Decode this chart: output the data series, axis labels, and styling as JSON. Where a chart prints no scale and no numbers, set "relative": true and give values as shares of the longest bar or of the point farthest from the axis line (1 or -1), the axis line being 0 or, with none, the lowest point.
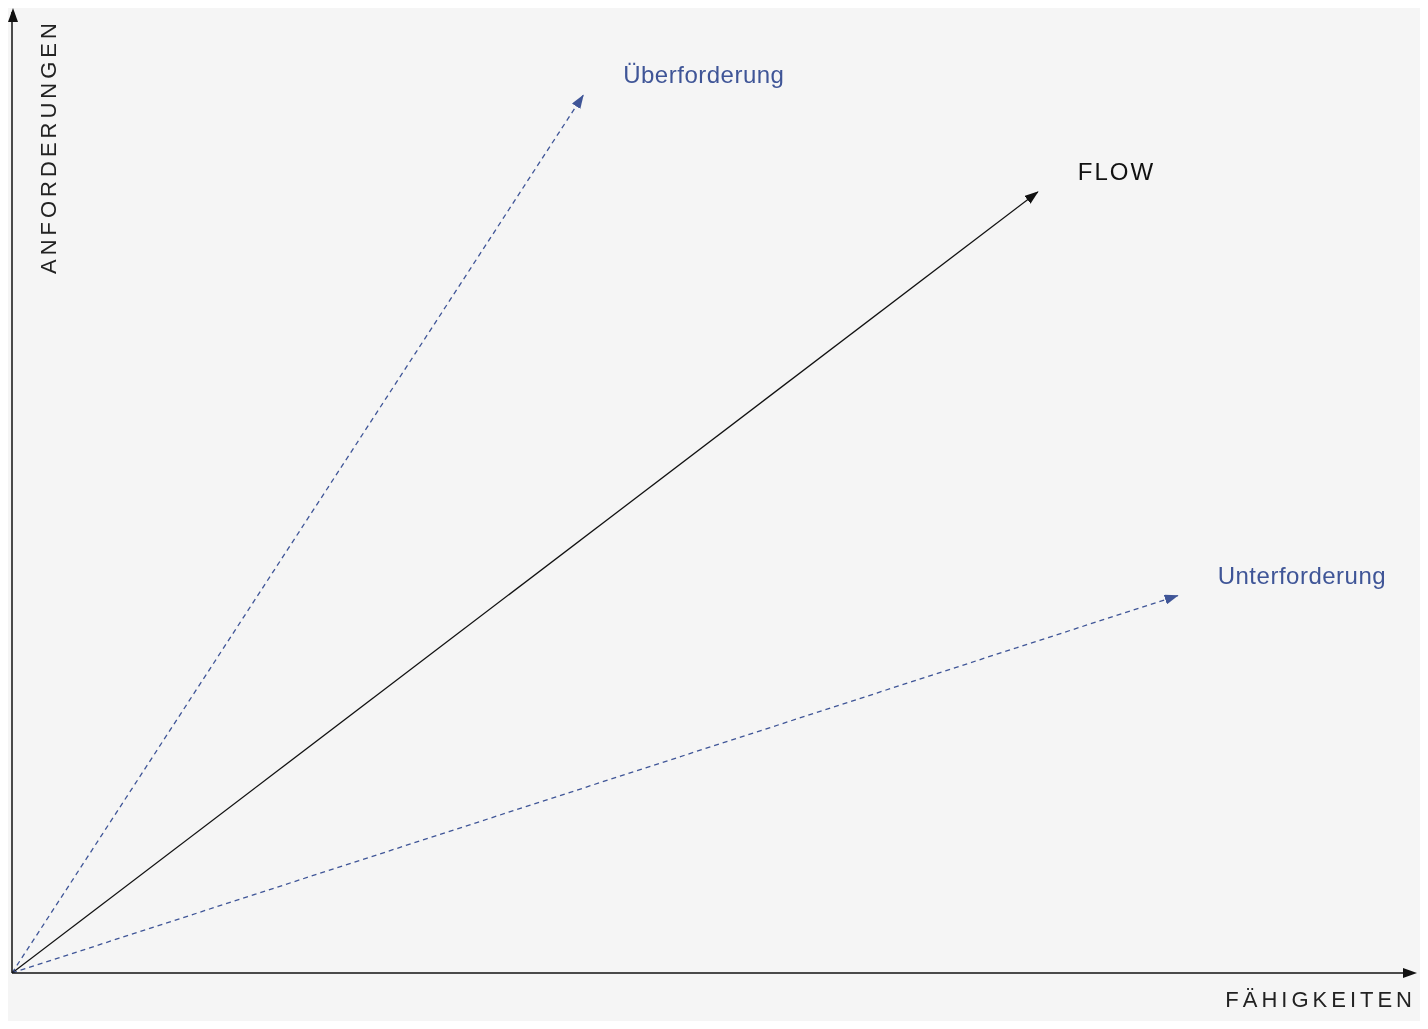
{
  "chart_data": {
    "type": "line",
    "relative": true,
    "xlabel": "FÄHIGKEITEN",
    "ylabel": "ANFORDERUNGEN",
    "legend": false,
    "grid": false,
    "categories": [
      null,
      null,
      null,
      null,
      null,
      null,
      null,
      null,
      null,
      null,
      null,
      null,
      null,
      null,
      null,
      null,
      null,
      null,
      null,
      null,
      null,
      null,
      null,
      null,
      null,
      null,
      null,
      null,
      null,
      null,
      null,
      null,
      null,
      null,
      null,
      null,
      null,
      null,
      null,
      null,
      null,
      null,
      null,
      null,
      null,
      null,
      null,
      null,
      null,
      null,
      null,
      null,
      null,
      null,
      null,
      null,
      null,
      null,
      null,
      null,
      null,
      null,
      null,
      null,
      null,
      null,
      null,
      null,
      null,
      null,
      null,
      null,
      null,
      null,
      null,
      null,
      null,
      null,
      null,
      null,
      null,
      null,
      null,
      null,
      null,
      null,
      null,
      null,
      null,
      null,
      null,
      null,
      null,
      null,
      null,
      null,
      null,
      null,
      null,
      null,
      null
    ],
    "series": [
      {
        "name": "Überforderung",
        "color": "#3f5597",
        "line_style": "dashed",
        "values": [
          0,
          null,
          null,
          null,
          null,
          null,
          null,
          null,
          null,
          null,
          null,
          null,
          null,
          null,
          null,
          null,
          null,
          null,
          null,
          null,
          null,
          null,
          null,
          null,
          null,
          null,
          null,
          null,
          null,
          null,
          null,
          null,
          null,
          null,
          null,
          null,
          null,
          null,
          null,
          null,
          null,
          null,
          null,
          null,
          null,
          null,
          null,
          null,
          null,
          1,
          null,
          null,
          null,
          null,
          null,
          null,
          null,
          null,
          null,
          null,
          null,
          null,
          null,
          null,
          null,
          null,
          null,
          null,
          null,
          null,
          null,
          null,
          null,
          null,
          null,
          null,
          null,
          null,
          null,
          null,
          null,
          null,
          null,
          null,
          null,
          null,
          null,
          null,
          null,
          null,
          null,
          null,
          null,
          null,
          null,
          null,
          null,
          null,
          null,
          null,
          null
        ]
      },
      {
        "name": "FLOW",
        "color": "#111111",
        "line_style": "solid",
        "values": [
          0,
          null,
          null,
          null,
          null,
          null,
          null,
          null,
          null,
          null,
          null,
          null,
          null,
          null,
          null,
          null,
          null,
          null,
          null,
          null,
          null,
          null,
          null,
          null,
          null,
          null,
          null,
          null,
          null,
          null,
          null,
          null,
          null,
          null,
          null,
          null,
          null,
          null,
          null,
          null,
          null,
          null,
          null,
          null,
          null,
          null,
          null,
          null,
          null,
          null,
          null,
          null,
          null,
          null,
          null,
          null,
          null,
          null,
          null,
          null,
          null,
          null,
          null,
          null,
          null,
          null,
          null,
          null,
          null,
          null,
          null,
          null,
          null,
          null,
          null,
          null,
          null,
          null,
          null,
          null,
          null,
          null,
          null,
          null,
          null,
          null,
          null,
          null,
          0.89,
          null,
          null,
          null,
          null,
          null,
          null,
          null,
          null,
          null,
          null,
          null,
          null
        ]
      },
      {
        "name": "Unterforderung",
        "color": "#3f5597",
        "line_style": "dashed",
        "values": [
          0,
          null,
          null,
          null,
          null,
          null,
          null,
          null,
          null,
          null,
          null,
          null,
          null,
          null,
          null,
          null,
          null,
          null,
          null,
          null,
          null,
          null,
          null,
          null,
          null,
          null,
          null,
          null,
          null,
          null,
          null,
          null,
          null,
          null,
          null,
          null,
          null,
          null,
          null,
          null,
          null,
          null,
          null,
          null,
          null,
          null,
          null,
          null,
          null,
          null,
          null,
          null,
          null,
          null,
          null,
          null,
          null,
          null,
          null,
          null,
          null,
          null,
          null,
          null,
          null,
          null,
          null,
          null,
          null,
          null,
          null,
          null,
          null,
          null,
          null,
          null,
          null,
          null,
          null,
          null,
          null,
          null,
          null,
          null,
          null,
          null,
          null,
          null,
          null,
          null,
          null,
          null,
          null,
          null,
          null,
          null,
          null,
          null,
          null,
          null,
          0.43
        ]
      }
    ]
  }
}
